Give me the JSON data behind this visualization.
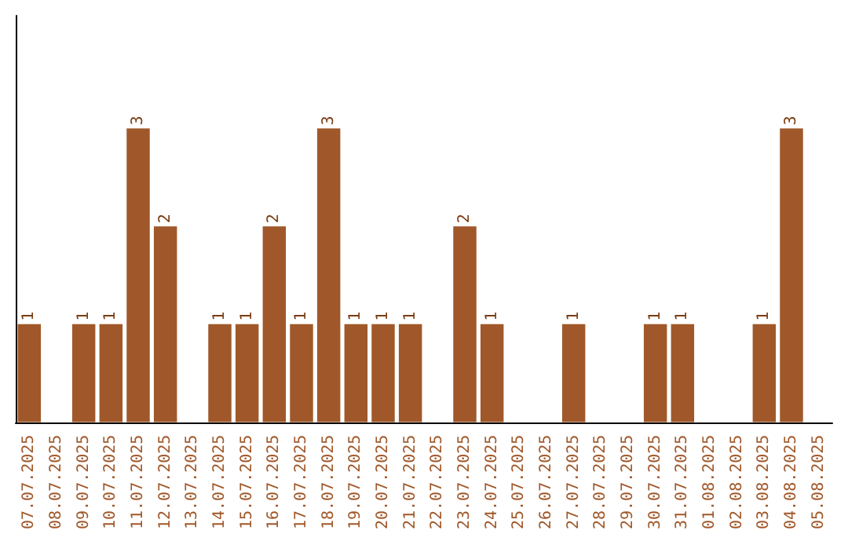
{
  "chart_data": {
    "type": "bar",
    "categories": [
      "07.07.2025",
      "08.07.2025",
      "09.07.2025",
      "10.07.2025",
      "11.07.2025",
      "12.07.2025",
      "13.07.2025",
      "14.07.2025",
      "15.07.2025",
      "16.07.2025",
      "17.07.2025",
      "18.07.2025",
      "19.07.2025",
      "20.07.2025",
      "21.07.2025",
      "22.07.2025",
      "23.07.2025",
      "24.07.2025",
      "25.07.2025",
      "26.07.2025",
      "27.07.2025",
      "28.07.2025",
      "29.07.2025",
      "30.07.2025",
      "31.07.2025",
      "01.08.2025",
      "02.08.2025",
      "03.08.2025",
      "04.08.2025",
      "05.08.2025"
    ],
    "values": [
      1,
      0,
      1,
      1,
      3,
      2,
      0,
      1,
      1,
      2,
      1,
      3,
      1,
      1,
      1,
      0,
      2,
      1,
      0,
      0,
      1,
      0,
      0,
      1,
      1,
      0,
      0,
      1,
      3,
      0
    ],
    "value_labels": [
      "1",
      null,
      "1",
      "1",
      "3",
      "2",
      null,
      "1",
      "1",
      "2",
      "1",
      "3",
      "1",
      "1",
      "1",
      null,
      "2",
      "1",
      null,
      null,
      "1",
      null,
      null,
      "1",
      "1",
      null,
      null,
      "1",
      "3",
      null
    ],
    "color": "#a0582a",
    "ylim": [
      0,
      4.15
    ],
    "tick_labels": "x",
    "grid": false
  }
}
